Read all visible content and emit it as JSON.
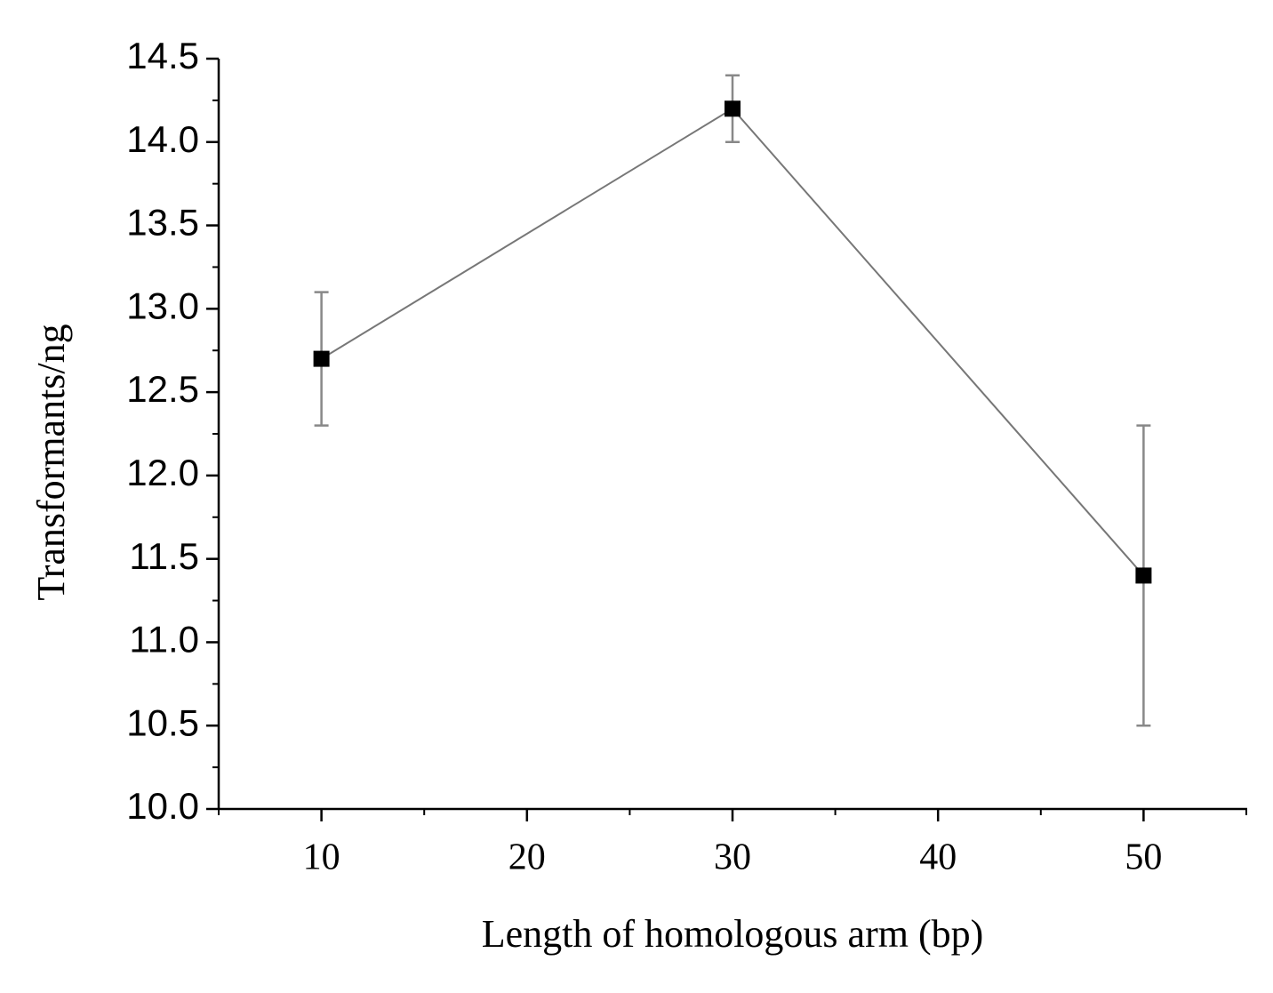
{
  "chart_data": {
    "type": "line",
    "x_label": "Length of homologous arm (bp)",
    "y_label": "Transformants/ng",
    "x": [
      10,
      30,
      50
    ],
    "values": [
      12.7,
      14.2,
      11.4
    ],
    "errors": [
      0.4,
      0.2,
      0.9
    ],
    "color": "#000000",
    "line_color": "#777777",
    "error_color": "#888888",
    "xlim": [
      5,
      55
    ],
    "xticks": [
      10,
      20,
      30,
      40,
      50
    ],
    "x_minor_ticks": [
      5,
      15,
      25,
      35,
      45,
      55
    ],
    "ylim": [
      10,
      14.5
    ],
    "yticks": [
      {
        "value": 10,
        "label": "10.0"
      },
      {
        "value": 10.5,
        "label": "10.5"
      },
      {
        "value": 11,
        "label": "11.0"
      },
      {
        "value": 11.5,
        "label": "11.5"
      },
      {
        "value": 12,
        "label": "12.0"
      },
      {
        "value": 12.5,
        "label": "12.5"
      },
      {
        "value": 13,
        "label": "13.0"
      },
      {
        "value": 13.5,
        "label": "13.5"
      },
      {
        "value": 14,
        "label": "14.0"
      },
      {
        "value": 14.5,
        "label": "14.5"
      }
    ],
    "y_minor_ticks": [
      10.25,
      10.75,
      11.25,
      11.75,
      12.25,
      12.75,
      13.25,
      13.75,
      14.25
    ],
    "grid": false
  }
}
